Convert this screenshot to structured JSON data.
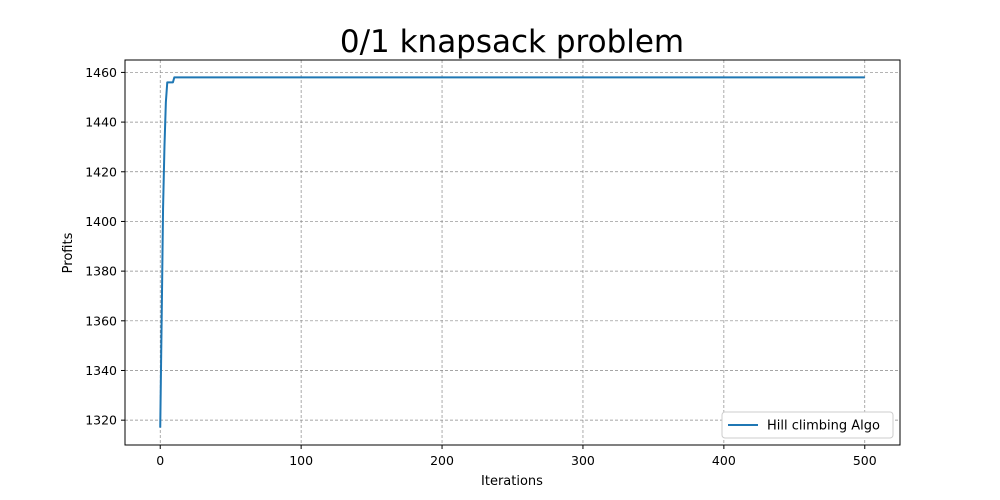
{
  "chart_data": {
    "type": "line",
    "title": "0/1 knapsack problem",
    "xlabel": "Iterations",
    "ylabel": "Profits",
    "xlim": [
      -25,
      525
    ],
    "ylim": [
      1310,
      1465
    ],
    "xticks": [
      0,
      100,
      200,
      300,
      400,
      500
    ],
    "yticks": [
      1320,
      1340,
      1360,
      1380,
      1400,
      1420,
      1440,
      1460
    ],
    "grid": true,
    "legend_position": "lower-right",
    "series": [
      {
        "name": "Hill climbing Algo",
        "color": "#1f77b4",
        "x": [
          0,
          1,
          2,
          3,
          4,
          5,
          6,
          7,
          8,
          9,
          10,
          500
        ],
        "y": [
          1317,
          1360,
          1405,
          1430,
          1448,
          1456,
          1456,
          1456,
          1456,
          1456,
          1458,
          1458
        ]
      }
    ]
  }
}
